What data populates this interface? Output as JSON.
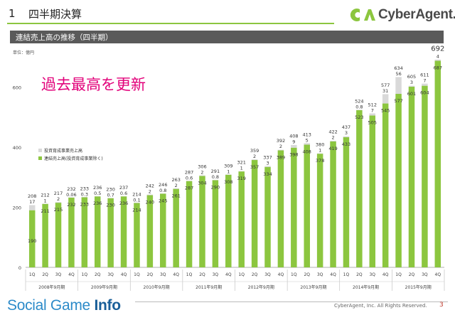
{
  "header": {
    "slide_number": "1",
    "title": "四半期決算",
    "logo_text": "CyberAgent."
  },
  "section": {
    "label": "連結売上高の推移（四半期）"
  },
  "unit_label": "単位：億円",
  "footer": {
    "brand_part1": "Social Game ",
    "brand_part2": "Info",
    "copyright": "CyberAgent, Inc. All Rights Reserved.",
    "page_number": "3"
  },
  "colors": {
    "bar_main": "#8cc63f",
    "bar_other": "#d9d9d9",
    "highlight_text": "#e2007a",
    "accent": "#8cc63f"
  },
  "chart_data": {
    "type": "bar",
    "stacked": true,
    "annotation": "過去最高を更新",
    "ylim": [
      0,
      700
    ],
    "yticks": [
      0,
      200,
      400,
      600
    ],
    "grid": false,
    "legend_position": "left-middle",
    "categories": [
      "1Q",
      "2Q",
      "3Q",
      "4Q",
      "1Q",
      "2Q",
      "3Q",
      "4Q",
      "1Q",
      "2Q",
      "3Q",
      "4Q",
      "1Q",
      "2Q",
      "3Q",
      "4Q",
      "1Q",
      "2Q",
      "3Q",
      "4Q",
      "1Q",
      "2Q",
      "3Q",
      "4Q",
      "1Q",
      "2Q",
      "3Q",
      "4Q",
      "1Q",
      "2Q",
      "3Q",
      "4Q"
    ],
    "groups": [
      {
        "label": "2008年9月期",
        "count": 4
      },
      {
        "label": "2009年9月期",
        "count": 4
      },
      {
        "label": "2010年9月期",
        "count": 4
      },
      {
        "label": "2011年9月期",
        "count": 4
      },
      {
        "label": "2012年9月期",
        "count": 4
      },
      {
        "label": "2013年9月期",
        "count": 4
      },
      {
        "label": "2014年9月期",
        "count": 4
      },
      {
        "label": "2015年9月期",
        "count": 4
      }
    ],
    "series": [
      {
        "name": "連結売上高(投資育成事業除く)",
        "values": [
          190,
          211,
          215,
          232,
          233,
          236,
          230,
          236,
          214,
          240,
          245,
          261,
          287,
          304,
          290,
          308,
          319,
          357,
          334,
          389,
          398,
          408,
          378,
          419,
          433,
          523,
          505,
          545,
          577,
          601,
          604,
          687
        ],
        "labels": [
          "190",
          "211",
          "215",
          "232",
          "233",
          "236",
          "230",
          "236",
          "214",
          "240",
          "245",
          "261",
          "287",
          "304",
          "290",
          "308",
          "319",
          "357",
          "334",
          "389",
          "398",
          "408",
          "378",
          "419",
          "433",
          "523",
          "505",
          "545",
          "577",
          "601",
          "604",
          "687"
        ]
      },
      {
        "name": "投資育成事業売上高",
        "values": [
          17,
          1,
          2,
          0.06,
          0.3,
          0.5,
          0.7,
          0.6,
          0.1,
          2,
          0.8,
          2,
          0.6,
          2,
          0.8,
          1,
          1,
          2,
          3,
          2,
          9,
          5,
          1,
          2,
          3,
          0.8,
          7,
          31,
          56,
          3,
          7,
          4
        ],
        "labels": [
          "17",
          "1",
          "2",
          "0.06",
          "0.3",
          "0.5",
          "0.7",
          "0.6",
          "0.1",
          "2",
          "0.8",
          "2",
          "0.6",
          "2",
          "0.8",
          "1",
          "1",
          "2",
          "3",
          "2",
          "9",
          "5",
          "1",
          "2",
          "3",
          "0.8",
          "7",
          "31",
          "56",
          "3",
          "7",
          "4"
        ]
      }
    ],
    "totals": [
      208,
      212,
      217,
      232,
      233,
      236,
      230,
      237,
      214,
      242,
      246,
      263,
      287,
      306,
      291,
      309,
      321,
      359,
      337,
      392,
      408,
      413,
      380,
      422,
      437,
      524,
      512,
      577,
      634,
      605,
      611,
      692
    ],
    "total_labels": [
      "208",
      "212",
      "217",
      "232",
      "233",
      "236",
      "230",
      "237",
      "214",
      "242",
      "246",
      "263",
      "287",
      "306",
      "291",
      "309",
      "321",
      "359",
      "337",
      "392",
      "408",
      "413",
      "380",
      "422",
      "437",
      "524",
      "512",
      "577",
      "634",
      "605",
      "611",
      "692"
    ]
  }
}
